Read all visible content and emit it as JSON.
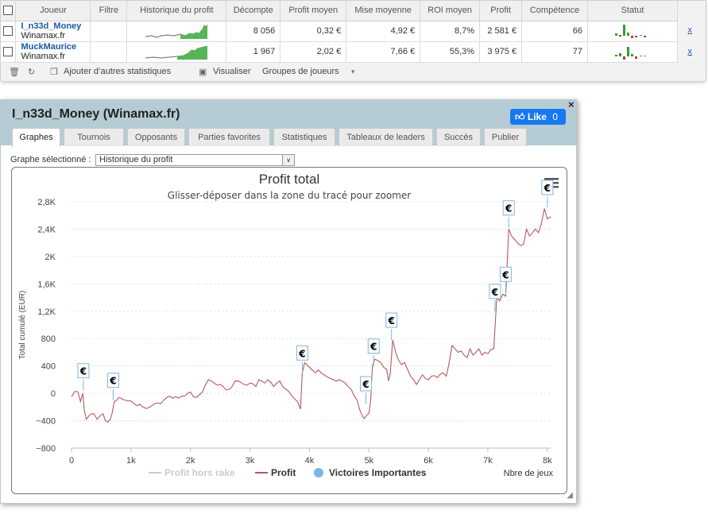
{
  "players_table": {
    "columns": [
      "Joueur",
      "Filtre",
      "Historique du profit",
      "Décompte",
      "Profit moyen",
      "Mise moyenne",
      "ROI moyen",
      "Profit",
      "Compétence",
      "Statut"
    ],
    "rows": [
      {
        "name": "I_n33d_Money",
        "site": "Winamax.fr",
        "count": "8 056",
        "avg_profit": "0,32 €",
        "avg_stake": "4,92 €",
        "roi": "8,7%",
        "profit": "2 581 €",
        "skill": "66",
        "remove": "x"
      },
      {
        "name": "MuckMaurice",
        "site": "Winamax.fr",
        "count": "1 967",
        "avg_profit": "2,02 €",
        "avg_stake": "7,66 €",
        "roi": "55,3%",
        "profit": "3 975 €",
        "skill": "77",
        "remove": "x"
      }
    ],
    "toolbar": {
      "add_stats": "Ajouter d’autres statistiques",
      "visualize": "Visualiser",
      "groups": "Groupes de joueurs"
    }
  },
  "modal": {
    "title": "I_n33d_Money (Winamax.fr)",
    "like_label": "Like",
    "like_count": "0",
    "close": "×",
    "tabs": [
      "Graphes",
      "Tournois",
      "Opposants",
      "Parties favorites",
      "Statistiques",
      "Tableaux de leaders",
      "Succès",
      "Publier"
    ],
    "active_tab": "Graphes",
    "graph_select_label": "Graphe sélectionné :",
    "graph_select_value": "Historique du profit"
  },
  "chart_data": {
    "type": "line",
    "title": "Profit total",
    "subtitle": "Glisser-déposer dans la zone du tracé pour zoomer",
    "xlabel": "Nbre de jeux",
    "ylabel": "Total cumulé (EUR)",
    "xlim": [
      0,
      8056
    ],
    "ylim": [
      -800,
      2800
    ],
    "x_ticks": [
      0,
      1000,
      2000,
      3000,
      4000,
      5000,
      6000,
      7000,
      8000
    ],
    "x_tick_labels": [
      "0",
      "1k",
      "2k",
      "3k",
      "4k",
      "5k",
      "6k",
      "7k",
      "8k"
    ],
    "y_ticks": [
      -800,
      -400,
      0,
      400,
      800,
      1200,
      1600,
      2000,
      2400,
      2800
    ],
    "y_tick_labels": [
      "−800",
      "−400",
      "0",
      "400",
      "800",
      "1,2K",
      "1,6K",
      "2K",
      "2,4K",
      "2,8K"
    ],
    "grid": true,
    "legend_position": "bottom",
    "series": [
      {
        "name": "Profit hors rake",
        "color": "#cccccc",
        "visible": false,
        "points": []
      },
      {
        "name": "Profit",
        "color": "#b45a5a",
        "points": [
          [
            0,
            -50
          ],
          [
            60,
            30
          ],
          [
            110,
            20
          ],
          [
            150,
            -120
          ],
          [
            190,
            0
          ],
          [
            215,
            -250
          ],
          [
            250,
            -380
          ],
          [
            290,
            -330
          ],
          [
            330,
            -300
          ],
          [
            380,
            -300
          ],
          [
            430,
            -380
          ],
          [
            480,
            -330
          ],
          [
            530,
            -300
          ],
          [
            570,
            -400
          ],
          [
            610,
            -420
          ],
          [
            650,
            -380
          ],
          [
            680,
            -300
          ],
          [
            720,
            -120
          ],
          [
            760,
            -100
          ],
          [
            800,
            -60
          ],
          [
            850,
            -80
          ],
          [
            900,
            -100
          ],
          [
            950,
            -110
          ],
          [
            1000,
            -110
          ],
          [
            1050,
            -150
          ],
          [
            1100,
            -180
          ],
          [
            1150,
            -160
          ],
          [
            1200,
            -200
          ],
          [
            1260,
            -220
          ],
          [
            1320,
            -200
          ],
          [
            1400,
            -150
          ],
          [
            1450,
            -140
          ],
          [
            1500,
            -150
          ],
          [
            1550,
            -100
          ],
          [
            1600,
            -60
          ],
          [
            1650,
            -40
          ],
          [
            1700,
            -70
          ],
          [
            1750,
            -50
          ],
          [
            1800,
            -70
          ],
          [
            1850,
            -40
          ],
          [
            1900,
            -40
          ],
          [
            1950,
            0
          ],
          [
            2000,
            20
          ],
          [
            2050,
            -50
          ],
          [
            2100,
            -60
          ],
          [
            2150,
            -20
          ],
          [
            2200,
            20
          ],
          [
            2250,
            120
          ],
          [
            2300,
            200
          ],
          [
            2350,
            180
          ],
          [
            2400,
            150
          ],
          [
            2450,
            120
          ],
          [
            2500,
            130
          ],
          [
            2550,
            100
          ],
          [
            2600,
            50
          ],
          [
            2650,
            60
          ],
          [
            2700,
            100
          ],
          [
            2750,
            180
          ],
          [
            2800,
            180
          ],
          [
            2850,
            160
          ],
          [
            2900,
            130
          ],
          [
            2950,
            120
          ],
          [
            3000,
            150
          ],
          [
            3050,
            140
          ],
          [
            3100,
            100
          ],
          [
            3150,
            200
          ],
          [
            3200,
            180
          ],
          [
            3250,
            150
          ],
          [
            3300,
            200
          ],
          [
            3350,
            160
          ],
          [
            3400,
            100
          ],
          [
            3450,
            150
          ],
          [
            3500,
            180
          ],
          [
            3550,
            100
          ],
          [
            3600,
            60
          ],
          [
            3650,
            30
          ],
          [
            3700,
            -30
          ],
          [
            3750,
            -80
          ],
          [
            3800,
            -120
          ],
          [
            3850,
            -230
          ],
          [
            3880,
            300
          ],
          [
            3920,
            450
          ],
          [
            3980,
            400
          ],
          [
            4050,
            340
          ],
          [
            4100,
            300
          ],
          [
            4150,
            340
          ],
          [
            4200,
            300
          ],
          [
            4250,
            270
          ],
          [
            4300,
            240
          ],
          [
            4350,
            220
          ],
          [
            4400,
            200
          ],
          [
            4450,
            180
          ],
          [
            4500,
            200
          ],
          [
            4550,
            180
          ],
          [
            4600,
            150
          ],
          [
            4650,
            100
          ],
          [
            4700,
            60
          ],
          [
            4750,
            -30
          ],
          [
            4800,
            -100
          ],
          [
            4850,
            -250
          ],
          [
            4880,
            -310
          ],
          [
            4920,
            -370
          ],
          [
            4960,
            -320
          ],
          [
            5000,
            -290
          ],
          [
            5030,
            -100
          ],
          [
            5060,
            400
          ],
          [
            5100,
            500
          ],
          [
            5150,
            480
          ],
          [
            5200,
            450
          ],
          [
            5250,
            380
          ],
          [
            5300,
            350
          ],
          [
            5330,
            180
          ],
          [
            5360,
            300
          ],
          [
            5400,
            780
          ],
          [
            5450,
            600
          ],
          [
            5500,
            480
          ],
          [
            5550,
            420
          ],
          [
            5600,
            450
          ],
          [
            5650,
            350
          ],
          [
            5700,
            250
          ],
          [
            5750,
            200
          ],
          [
            5800,
            130
          ],
          [
            5850,
            200
          ],
          [
            5900,
            270
          ],
          [
            5950,
            220
          ],
          [
            6000,
            200
          ],
          [
            6050,
            250
          ],
          [
            6100,
            260
          ],
          [
            6150,
            230
          ],
          [
            6200,
            280
          ],
          [
            6250,
            300
          ],
          [
            6300,
            250
          ],
          [
            6350,
            450
          ],
          [
            6400,
            700
          ],
          [
            6450,
            650
          ],
          [
            6500,
            600
          ],
          [
            6550,
            620
          ],
          [
            6600,
            560
          ],
          [
            6650,
            520
          ],
          [
            6700,
            650
          ],
          [
            6750,
            560
          ],
          [
            6800,
            600
          ],
          [
            6850,
            650
          ],
          [
            6900,
            560
          ],
          [
            6950,
            600
          ],
          [
            7000,
            580
          ],
          [
            7050,
            640
          ],
          [
            7100,
            650
          ],
          [
            7150,
            1400
          ],
          [
            7200,
            1350
          ],
          [
            7250,
            1450
          ],
          [
            7300,
            1420
          ],
          [
            7350,
            2400
          ],
          [
            7400,
            2300
          ],
          [
            7450,
            2250
          ],
          [
            7500,
            2200
          ],
          [
            7550,
            2160
          ],
          [
            7600,
            2180
          ],
          [
            7650,
            2400
          ],
          [
            7700,
            2300
          ],
          [
            7750,
            2350
          ],
          [
            7800,
            2400
          ],
          [
            7850,
            2350
          ],
          [
            7900,
            2480
          ],
          [
            7950,
            2700
          ],
          [
            8000,
            2550
          ],
          [
            8056,
            2581
          ]
        ]
      },
      {
        "name": "Victoires Importantes",
        "color": "#7cb5ec",
        "flag": "€",
        "points": [
          [
            200,
            40
          ],
          [
            700,
            -100
          ],
          [
            3880,
            300
          ],
          [
            4950,
            -150
          ],
          [
            5080,
            400
          ],
          [
            5380,
            780
          ],
          [
            7120,
            1200
          ],
          [
            7300,
            1450
          ],
          [
            7350,
            2420
          ],
          [
            8000,
            2720
          ]
        ]
      }
    ]
  }
}
